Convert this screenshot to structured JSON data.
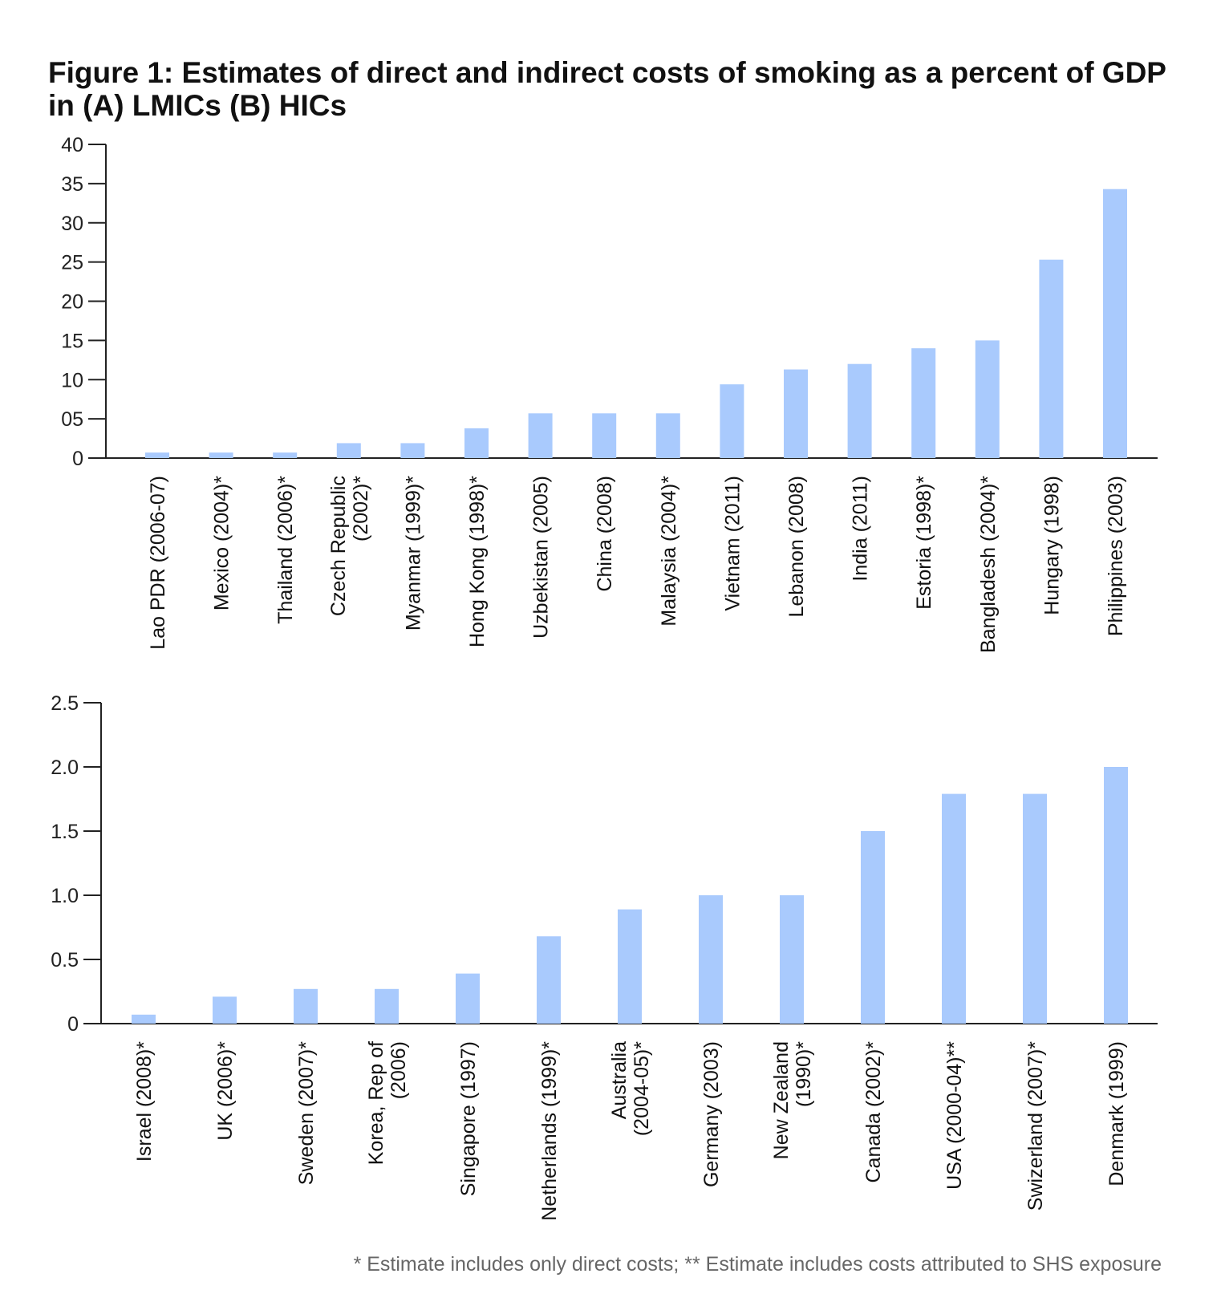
{
  "figure": {
    "title": "Figure 1: Estimates of direct and indirect costs of smoking as a percent of GDP in (A) LMICs (B) HICs",
    "footnote": "* Estimate includes only direct costs; ** Estimate includes costs attributed to SHS exposure"
  },
  "colors": {
    "bar": "#a9cafd",
    "axis": "#222222",
    "text": "#111111",
    "footnote": "#666666"
  },
  "chart_data": [
    {
      "type": "bar",
      "id": "A",
      "title": "",
      "xlabel": "",
      "ylabel": "",
      "ylim": [
        0,
        40
      ],
      "y_ticks": [
        0,
        5,
        10,
        15,
        20,
        25,
        30,
        35,
        40
      ],
      "y_tick_labels": [
        "0",
        "05",
        "10",
        "15",
        "20",
        "25",
        "30",
        "35",
        "40"
      ],
      "grid": false,
      "categories": [
        [
          "Lao PDR (2006-07)"
        ],
        [
          "Mexico (2004)*"
        ],
        [
          "Thailand (2006)*"
        ],
        [
          "Czech Republic",
          "(2002)*"
        ],
        [
          "Myanmar (1999)*"
        ],
        [
          "Hong Kong (1998)*"
        ],
        [
          "Uzbekistan (2005)"
        ],
        [
          "China (2008)"
        ],
        [
          "Malaysia (2004)*"
        ],
        [
          "Vietnam (2011)"
        ],
        [
          "Lebanon (2008)"
        ],
        [
          "India (2011)"
        ],
        [
          "Estoria (1998)*"
        ],
        [
          "Bangladesh (2004)*"
        ],
        [
          "Hungary (1998)"
        ],
        [
          "Philippines (2003)"
        ]
      ],
      "values": [
        0.7,
        0.7,
        0.7,
        1.9,
        1.9,
        3.8,
        5.7,
        5.7,
        5.7,
        9.4,
        11.3,
        12.0,
        14.0,
        15.0,
        25.3,
        34.3
      ]
    },
    {
      "type": "bar",
      "id": "B",
      "title": "",
      "xlabel": "",
      "ylabel": "",
      "ylim": [
        0,
        2.5
      ],
      "y_ticks": [
        0,
        0.5,
        1.0,
        1.5,
        2.0,
        2.5
      ],
      "y_tick_labels": [
        "0",
        "0.5",
        "1.0",
        "1.5",
        "2.0",
        "2.5"
      ],
      "grid": false,
      "categories": [
        [
          "Israel (2008)*"
        ],
        [
          "UK (2006)*"
        ],
        [
          "Sweden (2007)*"
        ],
        [
          "Korea, Rep of",
          "(2006)"
        ],
        [
          "Singapore (1997)"
        ],
        [
          "Netherlands (1999)*"
        ],
        [
          "Australia",
          "(2004-05)*"
        ],
        [
          "Germany (2003)"
        ],
        [
          "New Zealand",
          "(1990)*"
        ],
        [
          "Canada (2002)*"
        ],
        [
          "USA (2000-04)**"
        ],
        [
          "Swizerland (2007)*"
        ],
        [
          "Denmark (1999)"
        ]
      ],
      "values": [
        0.07,
        0.21,
        0.27,
        0.27,
        0.39,
        0.68,
        0.89,
        1.0,
        1.0,
        1.5,
        1.79,
        1.79,
        2.0
      ]
    }
  ]
}
